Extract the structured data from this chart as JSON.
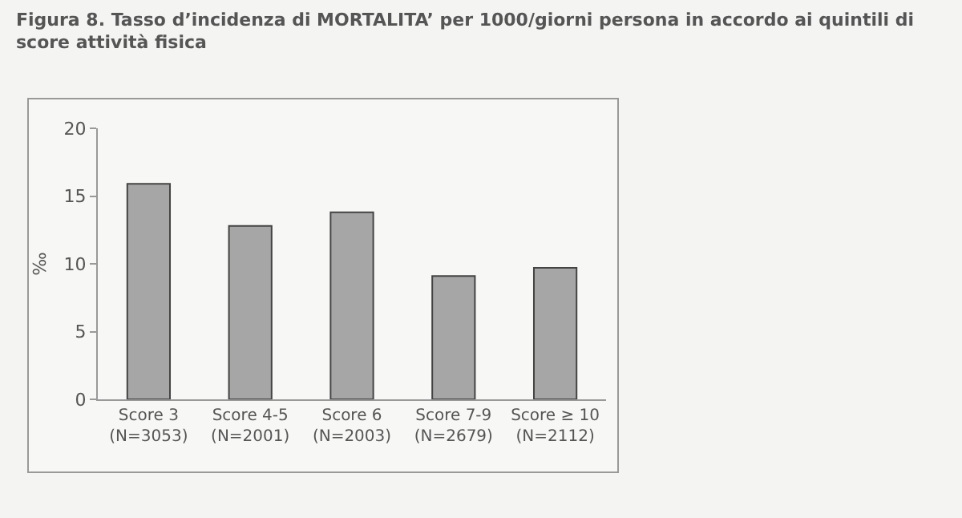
{
  "chart_data": {
    "type": "bar",
    "title": "Figura 8. Tasso d’incidenza di MORTALITA’ per 1000/giorni persona in accordo ai quintili di score attività fisica",
    "ylabel": "‰",
    "categories": [
      "Score 3\n(N=3053)",
      "Score 4-5\n(N=2001)",
      "Score 6\n(N=2003)",
      "Score 7-9\n(N=2679)",
      "Score ≥ 10\n(N=2112)"
    ],
    "values": [
      15.9,
      12.8,
      13.8,
      9.1,
      9.7
    ],
    "color": "#a6a6a6",
    "ylim": [
      0,
      20
    ],
    "yticks": [
      0,
      5,
      10,
      15,
      20
    ],
    "grid": false
  }
}
